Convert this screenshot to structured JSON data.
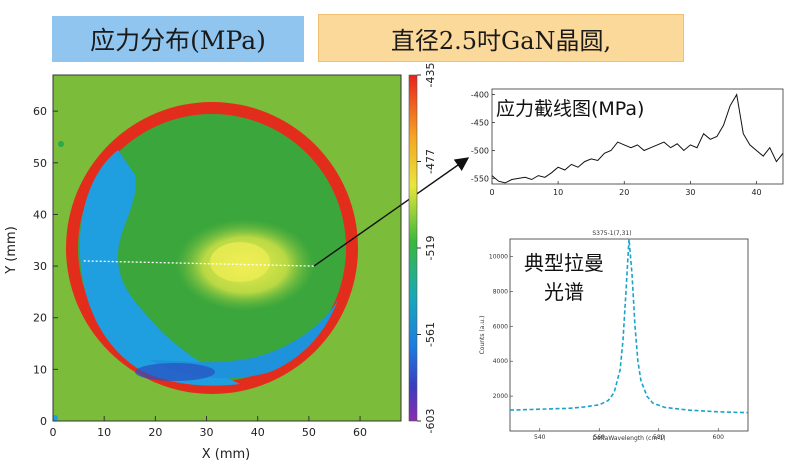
{
  "labels": {
    "title_left": "应力分布(MPa)",
    "title_right": "直径2.5吋GaN晶圆,",
    "line_title": "应力截线图(MPa)",
    "raman_title": "典型拉曼光谱"
  },
  "colors": {
    "title_left_bg": "#8fc5ef",
    "title_right_bg": "#fbd99a",
    "map_background": "#7cbc3b",
    "map_edge": "#e32d1c",
    "map_blue": "#1f9fe0",
    "map_green": "#34a83b",
    "map_yellow": "#e4e63a",
    "spectrum": "#1aa3c9"
  },
  "chart_data": [
    {
      "type": "heatmap",
      "title": "应力分布(MPa)",
      "xlabel": "X (mm)",
      "ylabel": "Y (mm)",
      "xlim": [
        0,
        68
      ],
      "ylim": [
        0,
        67
      ],
      "xticks": [
        0,
        10,
        20,
        30,
        40,
        50,
        60
      ],
      "yticks": [
        0,
        10,
        20,
        30,
        40,
        50,
        60
      ],
      "colorbar": {
        "min": -603,
        "max": -435,
        "ticks": [
          -435,
          -477,
          -519,
          -561,
          -603
        ]
      },
      "wafer": {
        "center": [
          31,
          33.5
        ],
        "radius": 28.5
      },
      "line_cut": {
        "from": [
          6,
          31
        ],
        "to": [
          51,
          30
        ]
      }
    },
    {
      "type": "line",
      "title": "应力截线图(MPa)",
      "xlim": [
        0,
        44
      ],
      "ylim": [
        -560,
        -390
      ],
      "xticks": [
        0,
        10,
        20,
        30,
        40
      ],
      "yticks": [
        -400,
        -450,
        -500,
        -550
      ],
      "x": [
        0,
        1,
        2,
        3,
        4,
        5,
        6,
        7,
        8,
        9,
        10,
        11,
        12,
        13,
        14,
        15,
        16,
        17,
        18,
        19,
        20,
        21,
        22,
        23,
        24,
        25,
        26,
        27,
        28,
        29,
        30,
        31,
        32,
        33,
        34,
        35,
        36,
        37,
        38,
        39,
        40,
        41,
        42,
        43,
        44
      ],
      "y": [
        -545,
        -555,
        -558,
        -552,
        -550,
        -548,
        -552,
        -545,
        -548,
        -540,
        -530,
        -535,
        -525,
        -530,
        -520,
        -515,
        -518,
        -505,
        -500,
        -485,
        -490,
        -495,
        -490,
        -500,
        -495,
        -490,
        -485,
        -495,
        -488,
        -500,
        -490,
        -495,
        -470,
        -480,
        -475,
        -455,
        -420,
        -400,
        -470,
        -490,
        -500,
        -510,
        -495,
        -520,
        -505
      ]
    },
    {
      "type": "line",
      "title": "S375-1(7,31)",
      "annotation": "典型拉曼光谱",
      "xlabel": "DeltaWavelength (cm-1)",
      "ylabel": "Counts (a.u.)",
      "xlim": [
        530,
        610
      ],
      "ylim": [
        0,
        11000
      ],
      "xticks": [
        540,
        560,
        580,
        600
      ],
      "yticks": [
        2000,
        4000,
        6000,
        8000,
        10000
      ],
      "x": [
        530,
        540,
        550,
        555,
        560,
        563,
        565,
        567,
        568,
        569,
        570,
        571,
        572,
        573,
        574,
        576,
        578,
        582,
        590,
        600,
        610
      ],
      "y": [
        1200,
        1250,
        1300,
        1380,
        1500,
        1750,
        2200,
        3500,
        5200,
        8000,
        11000,
        9000,
        6000,
        4000,
        2900,
        2000,
        1600,
        1350,
        1200,
        1100,
        1050
      ]
    }
  ]
}
